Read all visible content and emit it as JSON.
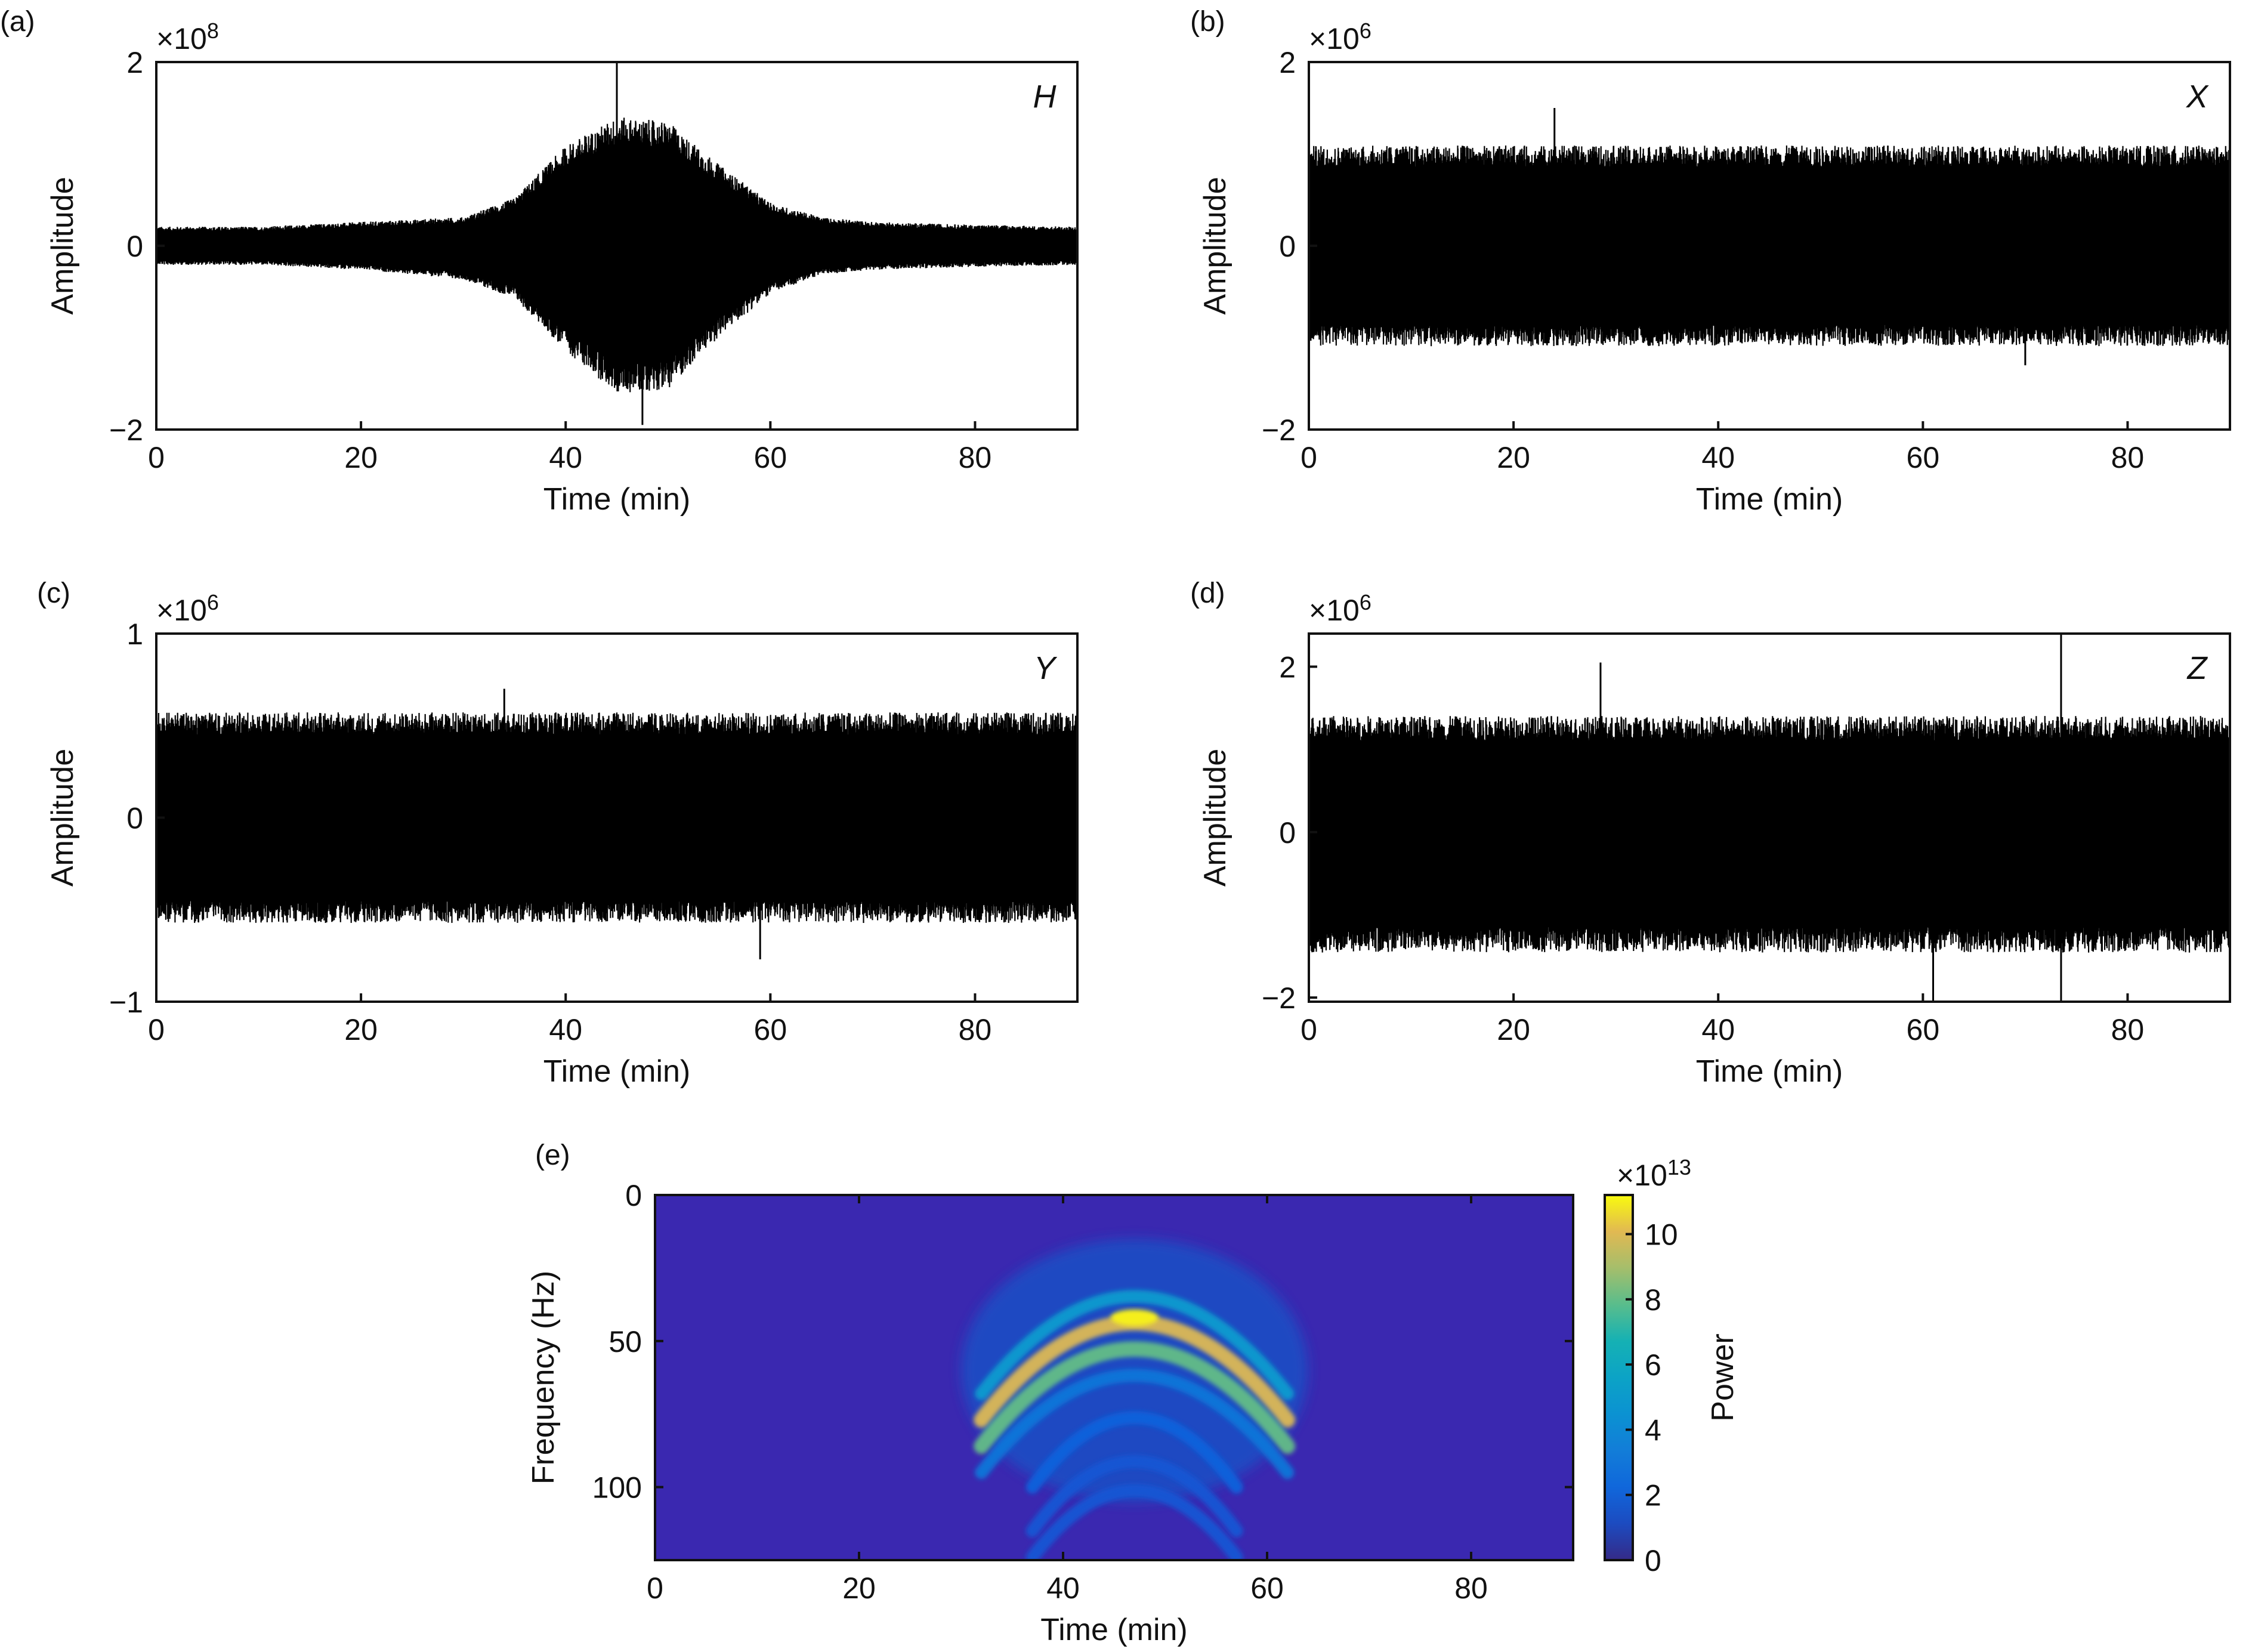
{
  "figure": {
    "panels": [
      {
        "id": "a",
        "label": "(a)",
        "exponent_base": "×10",
        "exponent_power": "8"
      },
      {
        "id": "b",
        "label": "(b)",
        "exponent_base": "×10",
        "exponent_power": "6"
      },
      {
        "id": "c",
        "label": "(c)",
        "exponent_base": "×10",
        "exponent_power": "6"
      },
      {
        "id": "d",
        "label": "(d)",
        "exponent_base": "×10",
        "exponent_power": "6"
      },
      {
        "id": "e",
        "label": "(e)",
        "exponent_base": "×10",
        "exponent_power": "13"
      }
    ]
  },
  "chart_data": [
    {
      "panel": "a",
      "type": "line",
      "series": [
        {
          "name": "H"
        }
      ],
      "xlabel": "Time (min)",
      "ylabel": "Amplitude",
      "xlim": [
        0,
        90
      ],
      "ylim": [
        -2,
        2
      ],
      "y_multiplier": "×10^8",
      "xticks": [
        0,
        20,
        40,
        60,
        80
      ],
      "yticks": [
        -2,
        0,
        2
      ],
      "envelope": {
        "x": [
          0,
          10,
          20,
          30,
          35,
          40,
          45,
          50,
          55,
          60,
          65,
          70,
          80,
          90
        ],
        "upper": [
          0.2,
          0.2,
          0.25,
          0.3,
          0.5,
          1.05,
          1.35,
          1.3,
          0.85,
          0.45,
          0.3,
          0.25,
          0.22,
          0.2
        ],
        "lower": [
          -0.2,
          -0.2,
          -0.25,
          -0.35,
          -0.55,
          -1.1,
          -1.55,
          -1.5,
          -0.95,
          -0.5,
          -0.3,
          -0.25,
          -0.22,
          -0.2
        ]
      },
      "spikes": [
        {
          "x": 45,
          "y": 2.0
        },
        {
          "x": 47.5,
          "y": -1.95
        }
      ]
    },
    {
      "panel": "b",
      "type": "line",
      "series": [
        {
          "name": "X"
        }
      ],
      "xlabel": "Time (min)",
      "ylabel": "Amplitude",
      "xlim": [
        0,
        90
      ],
      "ylim": [
        -2,
        2
      ],
      "y_multiplier": "×10^6",
      "xticks": [
        0,
        20,
        40,
        60,
        80
      ],
      "yticks": [
        -2,
        0,
        2
      ],
      "envelope": {
        "x": [
          0,
          90
        ],
        "upper": [
          1.05,
          1.05
        ],
        "lower": [
          -1.05,
          -1.05
        ]
      },
      "spikes": [
        {
          "x": 24,
          "y": 1.5
        },
        {
          "x": 70,
          "y": -1.3
        }
      ]
    },
    {
      "panel": "c",
      "type": "line",
      "series": [
        {
          "name": "Y"
        }
      ],
      "xlabel": "Time (min)",
      "ylabel": "Amplitude",
      "xlim": [
        0,
        90
      ],
      "ylim": [
        -1,
        1
      ],
      "y_multiplier": "×10^6",
      "xticks": [
        0,
        20,
        40,
        60,
        80
      ],
      "yticks": [
        -1,
        0,
        1
      ],
      "envelope": {
        "x": [
          0,
          90
        ],
        "upper": [
          0.55,
          0.55
        ],
        "lower": [
          -0.55,
          -0.55
        ]
      },
      "spikes": [
        {
          "x": 34,
          "y": 0.7
        },
        {
          "x": 59,
          "y": -0.77
        }
      ]
    },
    {
      "panel": "d",
      "type": "line",
      "series": [
        {
          "name": "Z"
        }
      ],
      "xlabel": "Time (min)",
      "ylabel": "Amplitude",
      "xlim": [
        0,
        90
      ],
      "ylim": [
        -2.05,
        2.4
      ],
      "y_multiplier": "×10^6",
      "xticks": [
        0,
        20,
        40,
        60,
        80
      ],
      "yticks": [
        -2,
        0,
        2
      ],
      "envelope": {
        "x": [
          0,
          90
        ],
        "upper": [
          1.35,
          1.35
        ],
        "lower": [
          -1.4,
          -1.4
        ]
      },
      "spikes": [
        {
          "x": 73.5,
          "y": 2.4
        },
        {
          "x": 73.5,
          "y": -2.05
        },
        {
          "x": 28.5,
          "y": 2.05
        },
        {
          "x": 61,
          "y": -2.05
        }
      ]
    },
    {
      "panel": "e",
      "type": "heatmap",
      "xlabel": "Time (min)",
      "ylabel": "Frequency (Hz)",
      "xlim": [
        0,
        90
      ],
      "ylim": [
        0,
        125
      ],
      "y_inverted": true,
      "xticks": [
        0,
        20,
        40,
        60,
        80
      ],
      "yticks": [
        0,
        50,
        100
      ],
      "colorbar": {
        "label": "Power",
        "multiplier": "×10^13",
        "range": [
          0,
          11.2
        ],
        "ticks": [
          0,
          2,
          4,
          6,
          8,
          10
        ],
        "colormap": "parula"
      },
      "peak": {
        "time_min": 47,
        "frequency_hz": 42,
        "power": 11
      },
      "arcs": [
        {
          "center_time": 47,
          "apex_frequency_hz": 33,
          "power": 5
        },
        {
          "center_time": 47,
          "apex_frequency_hz": 42,
          "power": 10
        },
        {
          "center_time": 47,
          "apex_frequency_hz": 51,
          "power": 8
        },
        {
          "center_time": 47,
          "apex_frequency_hz": 60,
          "power": 3
        },
        {
          "center_time": 47,
          "apex_frequency_hz": 75,
          "power": 2
        },
        {
          "center_time": 47,
          "apex_frequency_hz": 90,
          "power": 1.5
        },
        {
          "center_time": 47,
          "apex_frequency_hz": 100,
          "power": 1.5
        }
      ]
    }
  ]
}
